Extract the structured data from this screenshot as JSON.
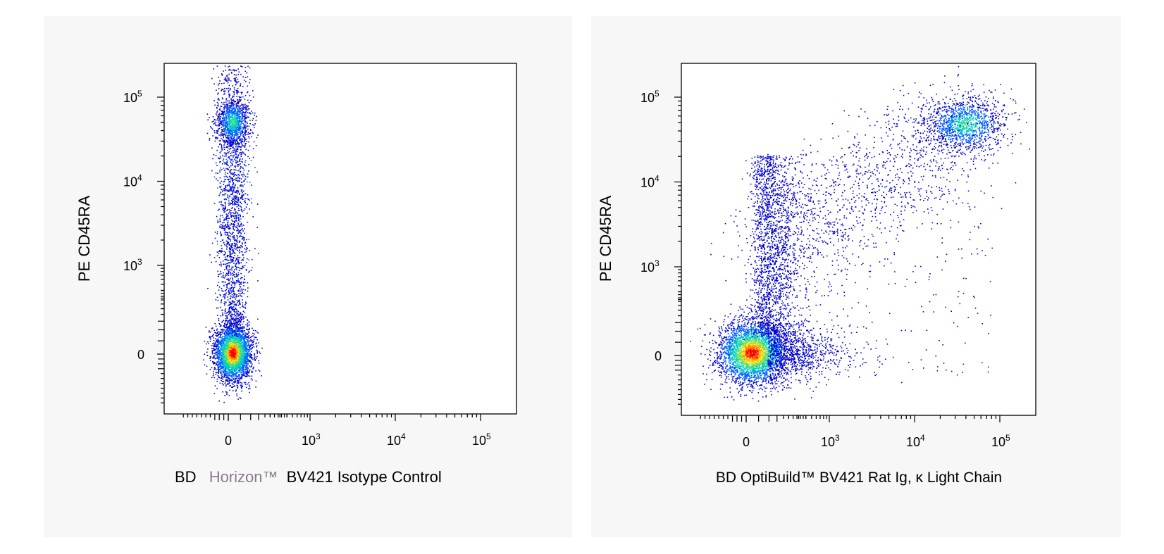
{
  "chart_data": [
    {
      "type": "scatter",
      "subtype": "flow-cytometry-density-dot-plot",
      "xlabel_parts": [
        "BD",
        "Horizon™",
        "BV421 Isotype Control"
      ],
      "ylabel": "PE CD45RA",
      "x_scale": "biexponential",
      "y_scale": "biexponential",
      "x_ticks": [
        "0",
        "10^3",
        "10^4",
        "10^5"
      ],
      "y_ticks": [
        "0",
        "10^3",
        "10^4",
        "10^5"
      ],
      "grid": false,
      "colors": {
        "low": "#0000cc",
        "mid": "#00c8c8",
        "high": "#ffe000",
        "peak": "#ff0000"
      },
      "populations": [
        {
          "x_center": 0,
          "y_center": 0,
          "density": "high"
        },
        {
          "x_center": 0,
          "y_center": 45000,
          "density": "medium"
        },
        {
          "x_center": 0,
          "y_range": [
            200,
            30000
          ],
          "density": "low"
        }
      ]
    },
    {
      "type": "scatter",
      "subtype": "flow-cytometry-density-dot-plot",
      "xlabel": "BD OptiBuild™ BV421 Rat Ig, κ Light Chain",
      "ylabel": "PE CD45RA",
      "x_scale": "biexponential",
      "y_scale": "biexponential",
      "x_ticks": [
        "0",
        "10^3",
        "10^4",
        "10^5"
      ],
      "y_ticks": [
        "0",
        "10^3",
        "10^4",
        "10^5"
      ],
      "grid": false,
      "colors": {
        "low": "#0000cc",
        "mid": "#00c8c8",
        "high": "#ffe000",
        "peak": "#ff0000"
      },
      "populations": [
        {
          "x_center": 50,
          "y_center": 0,
          "density": "high"
        },
        {
          "x_center": 25000,
          "y_center": 45000,
          "density": "medium"
        },
        {
          "x_range": [
            0,
            800
          ],
          "y_range": [
            200,
            30000
          ],
          "density": "low"
        },
        {
          "x_range": [
            500,
            20000
          ],
          "y_range": [
            1000,
            60000
          ],
          "density": "sparse"
        }
      ]
    }
  ]
}
